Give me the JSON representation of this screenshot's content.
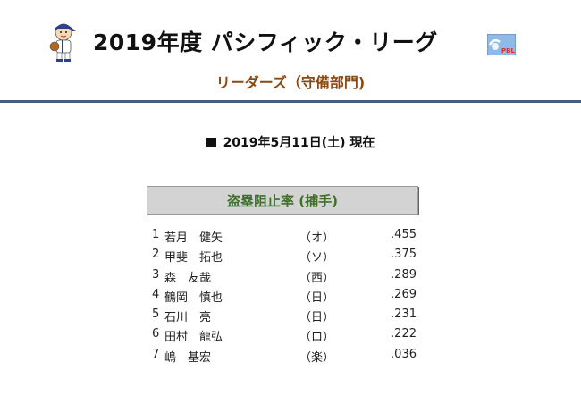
{
  "header": {
    "title": "2019年度 パシフィック・リーグ",
    "subtitle": "リーダーズ（守備部門)",
    "mascot_icon": "baseball-player-mascot-icon",
    "logo_icon": "pbl-logo-icon",
    "logo_text": "PBL"
  },
  "as_of": "2019年5月11日(土) 現在",
  "category": "盗塁阻止率 (捕手)",
  "leaders": [
    {
      "rank": "1",
      "name": "若月　健矢",
      "team": "（オ）",
      "value": ".455"
    },
    {
      "rank": "2",
      "name": "甲斐　拓也",
      "team": "（ソ）",
      "value": ".375"
    },
    {
      "rank": "3",
      "name": "森　友哉",
      "team": "（西）",
      "value": ".289"
    },
    {
      "rank": "4",
      "name": "鶴岡　慎也",
      "team": "（日）",
      "value": ".269"
    },
    {
      "rank": "5",
      "name": "石川　亮",
      "team": "（日）",
      "value": ".231"
    },
    {
      "rank": "6",
      "name": "田村　龍弘",
      "team": "（ロ）",
      "value": ".222"
    },
    {
      "rank": "7",
      "name": "嶋　基宏",
      "team": "（楽）",
      "value": ".036"
    }
  ],
  "colors": {
    "subtitle": "#8a4a12",
    "rule": "#4a5d80",
    "category_text": "#3f6f2a",
    "category_bg": "#d3d3d3"
  }
}
